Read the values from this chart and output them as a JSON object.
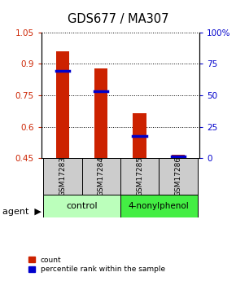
{
  "title": "GDS677 / MA307",
  "samples": [
    "GSM17283",
    "GSM17284",
    "GSM17285",
    "GSM17286"
  ],
  "bar_tops": [
    0.96,
    0.878,
    0.665,
    0.467
  ],
  "bar_bottom": 0.45,
  "percentile_values": [
    0.868,
    0.768,
    0.558,
    0.458
  ],
  "ylim": [
    0.45,
    1.05
  ],
  "yticks_left": [
    0.45,
    0.6,
    0.75,
    0.9,
    1.05
  ],
  "yticks_right": [
    0,
    25,
    50,
    75,
    100
  ],
  "bar_color": "#cc2200",
  "percentile_color": "#0000cc",
  "bar_width": 0.35,
  "sample_bg_color": "#cccccc",
  "ctrl_color": "#bbffbb",
  "nonyl_color": "#44ee44",
  "background_color": "#ffffff",
  "legend_count_label": "count",
  "legend_percentile_label": "percentile rank within the sample"
}
